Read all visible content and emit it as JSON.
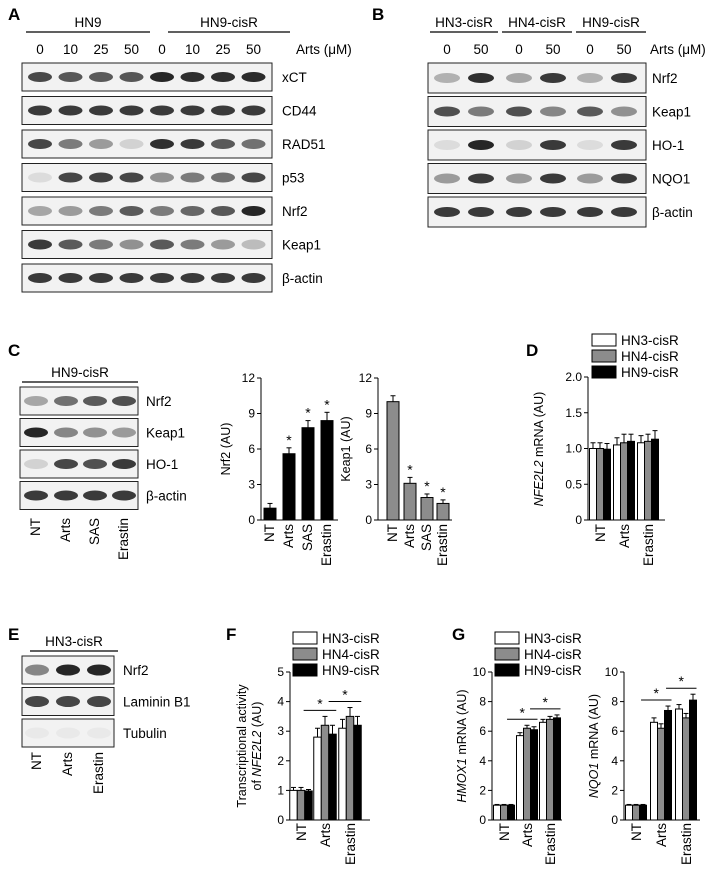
{
  "panels": {
    "A": {
      "label": "A",
      "groups": [
        "HN9",
        "HN9-cisR"
      ],
      "doses": [
        "0",
        "10",
        "25",
        "50",
        "0",
        "10",
        "25",
        "50"
      ],
      "unit": "Arts (μM)",
      "rows": [
        {
          "name": "xCT",
          "bands": [
            0.78,
            0.72,
            0.7,
            0.72,
            0.95,
            0.9,
            0.9,
            0.92
          ]
        },
        {
          "name": "CD44",
          "bands": [
            0.85,
            0.85,
            0.85,
            0.85,
            0.85,
            0.85,
            0.85,
            0.85
          ]
        },
        {
          "name": "RAD51",
          "bands": [
            0.8,
            0.55,
            0.4,
            0.15,
            0.9,
            0.85,
            0.7,
            0.6
          ]
        },
        {
          "name": "p53",
          "bands": [
            0.1,
            0.8,
            0.82,
            0.8,
            0.45,
            0.55,
            0.6,
            0.8
          ]
        },
        {
          "name": "Nrf2",
          "bands": [
            0.35,
            0.4,
            0.55,
            0.7,
            0.55,
            0.65,
            0.72,
            0.95
          ]
        },
        {
          "name": "Keap1",
          "bands": [
            0.85,
            0.7,
            0.55,
            0.45,
            0.7,
            0.55,
            0.4,
            0.25
          ]
        },
        {
          "name": "β-actin",
          "bands": [
            0.85,
            0.85,
            0.85,
            0.85,
            0.85,
            0.85,
            0.85,
            0.85
          ]
        }
      ]
    },
    "B": {
      "label": "B",
      "groups": [
        "HN3-cisR",
        "HN4-cisR",
        "HN9-cisR"
      ],
      "doses": [
        "0",
        "50",
        "0",
        "50",
        "0",
        "50"
      ],
      "unit": "Arts (μM)",
      "rows": [
        {
          "name": "Nrf2",
          "bands": [
            0.3,
            0.9,
            0.35,
            0.85,
            0.3,
            0.85
          ]
        },
        {
          "name": "Keap1",
          "bands": [
            0.75,
            0.55,
            0.75,
            0.5,
            0.7,
            0.45
          ]
        },
        {
          "name": "HO-1",
          "bands": [
            0.1,
            0.95,
            0.15,
            0.85,
            0.1,
            0.85
          ]
        },
        {
          "name": "NQO1",
          "bands": [
            0.4,
            0.85,
            0.4,
            0.85,
            0.4,
            0.85
          ]
        },
        {
          "name": "β-actin",
          "bands": [
            0.85,
            0.85,
            0.85,
            0.85,
            0.85,
            0.85
          ]
        }
      ]
    },
    "C": {
      "label": "C",
      "group": "HN9-cisR",
      "rows": [
        {
          "name": "Nrf2",
          "bands": [
            0.35,
            0.6,
            0.7,
            0.75
          ]
        },
        {
          "name": "Keap1",
          "bands": [
            0.95,
            0.5,
            0.45,
            0.4
          ]
        },
        {
          "name": "HO-1",
          "bands": [
            0.15,
            0.8,
            0.75,
            0.85
          ]
        },
        {
          "name": "β-actin",
          "bands": [
            0.85,
            0.85,
            0.85,
            0.85
          ]
        }
      ],
      "lanes": [
        "NT",
        "Arts",
        "SAS",
        "Erastin"
      ]
    },
    "E": {
      "label": "E",
      "group": "HN3-cisR",
      "rows": [
        {
          "name": "Nrf2",
          "bands": [
            0.5,
            0.95,
            0.95
          ]
        },
        {
          "name": "Laminin B1",
          "bands": [
            0.8,
            0.8,
            0.8
          ]
        },
        {
          "name": "Tubulin",
          "bands": [
            0.04,
            0.04,
            0.04
          ]
        }
      ],
      "lanes": [
        "NT",
        "Arts",
        "Erastin"
      ]
    },
    "D": {
      "label": "D"
    },
    "F": {
      "label": "F"
    },
    "G": {
      "label": "G"
    }
  },
  "chart_data": [
    {
      "id": "C-nrf2",
      "type": "bar",
      "categories": [
        "NT",
        "Arts",
        "SAS",
        "Erastin"
      ],
      "values": [
        1.0,
        5.6,
        7.8,
        8.4
      ],
      "errors": [
        0.4,
        0.5,
        0.6,
        0.7
      ],
      "sig": [
        false,
        true,
        true,
        true
      ],
      "ylabel": "Nrf2 (AU)",
      "ylim": [
        0,
        12
      ],
      "yticks": [
        "0",
        "3",
        "6",
        "9",
        "12"
      ],
      "color": "#000000"
    },
    {
      "id": "C-keap1",
      "type": "bar",
      "categories": [
        "NT",
        "Arts",
        "SAS",
        "Erastin"
      ],
      "values": [
        10.0,
        3.1,
        1.9,
        1.4
      ],
      "errors": [
        0.5,
        0.5,
        0.3,
        0.3
      ],
      "sig": [
        false,
        true,
        true,
        true
      ],
      "ylabel": "Keap1 (AU)",
      "ylim": [
        0,
        12
      ],
      "yticks": [
        "0",
        "3",
        "6",
        "9",
        "12"
      ],
      "color": "#8c8c8c"
    },
    {
      "id": "D",
      "type": "bar",
      "categories": [
        "NT",
        "Arts",
        "Erastin"
      ],
      "series": [
        {
          "name": "HN3-cisR",
          "color": "#ffffff",
          "values": [
            1.0,
            1.05,
            1.08
          ],
          "errors": [
            0.08,
            0.1,
            0.1
          ]
        },
        {
          "name": "HN4-cisR",
          "color": "#8c8c8c",
          "values": [
            1.0,
            1.08,
            1.1
          ],
          "errors": [
            0.08,
            0.12,
            0.1
          ]
        },
        {
          "name": "HN9-cisR",
          "color": "#000000",
          "values": [
            0.99,
            1.1,
            1.13
          ],
          "errors": [
            0.08,
            0.1,
            0.12
          ]
        }
      ],
      "ylabel_italic": "NFE2L2",
      "ylabel_rest": " mRNA (AU)",
      "ylim": [
        0,
        2.0
      ],
      "yticks": [
        "0",
        "0.5",
        "1.0",
        "1.5",
        "2.0"
      ]
    },
    {
      "id": "F",
      "type": "bar",
      "categories": [
        "NT",
        "Arts",
        "Erastin"
      ],
      "series": [
        {
          "name": "HN3-cisR",
          "color": "#ffffff",
          "values": [
            1.0,
            2.8,
            3.1
          ],
          "errors": [
            0.1,
            0.3,
            0.3
          ]
        },
        {
          "name": "HN4-cisR",
          "color": "#8c8c8c",
          "values": [
            1.0,
            3.2,
            3.5
          ],
          "errors": [
            0.1,
            0.3,
            0.3
          ]
        },
        {
          "name": "HN9-cisR",
          "color": "#000000",
          "values": [
            0.98,
            2.9,
            3.2
          ],
          "errors": [
            0.05,
            0.3,
            0.3
          ]
        }
      ],
      "sig": [
        "Arts",
        "Erastin"
      ],
      "ylabel_line1": "Transcriptional activity",
      "ylabel_line2_pre": "of ",
      "ylabel_line2_italic": "NFE2L2",
      "ylabel_line2_post": " (AU)",
      "ylim": [
        0,
        5
      ],
      "yticks": [
        "0",
        "1",
        "2",
        "3",
        "4",
        "5"
      ]
    },
    {
      "id": "G-hmox1",
      "type": "bar",
      "categories": [
        "NT",
        "Arts",
        "Erastin"
      ],
      "series": [
        {
          "name": "HN3-cisR",
          "color": "#ffffff",
          "values": [
            1.0,
            5.7,
            6.6
          ],
          "errors": [
            0.05,
            0.2,
            0.2
          ]
        },
        {
          "name": "HN4-cisR",
          "color": "#8c8c8c",
          "values": [
            1.0,
            6.2,
            6.8
          ],
          "errors": [
            0.05,
            0.2,
            0.2
          ]
        },
        {
          "name": "HN9-cisR",
          "color": "#000000",
          "values": [
            1.0,
            6.1,
            6.9
          ],
          "errors": [
            0.05,
            0.2,
            0.2
          ]
        }
      ],
      "sig": [
        "Arts",
        "Erastin"
      ],
      "ylabel_italic": "HMOX1",
      "ylabel_rest": " mRNA (AU)",
      "ylim": [
        0,
        10
      ],
      "yticks": [
        "0",
        "2",
        "4",
        "6",
        "8",
        "10"
      ]
    },
    {
      "id": "G-nqo1",
      "type": "bar",
      "categories": [
        "NT",
        "Arts",
        "Erastin"
      ],
      "series": [
        {
          "name": "HN3-cisR",
          "color": "#ffffff",
          "values": [
            1.0,
            6.6,
            7.5
          ],
          "errors": [
            0.05,
            0.3,
            0.3
          ]
        },
        {
          "name": "HN4-cisR",
          "color": "#8c8c8c",
          "values": [
            1.0,
            6.2,
            6.9
          ],
          "errors": [
            0.05,
            0.3,
            0.3
          ]
        },
        {
          "name": "HN9-cisR",
          "color": "#000000",
          "values": [
            1.0,
            7.4,
            8.1
          ],
          "errors": [
            0.05,
            0.3,
            0.4
          ]
        }
      ],
      "sig": [
        "Arts",
        "Erastin"
      ],
      "ylabel_italic": "NQO1",
      "ylabel_rest": " mRNA (AU)",
      "ylim": [
        0,
        10
      ],
      "yticks": [
        "0",
        "2",
        "4",
        "6",
        "8",
        "10"
      ]
    }
  ],
  "legend": {
    "entries": [
      {
        "name": "HN3-cisR",
        "color": "#ffffff"
      },
      {
        "name": "HN4-cisR",
        "color": "#8c8c8c"
      },
      {
        "name": "HN9-cisR",
        "color": "#000000"
      }
    ]
  },
  "sig_marker": "*"
}
